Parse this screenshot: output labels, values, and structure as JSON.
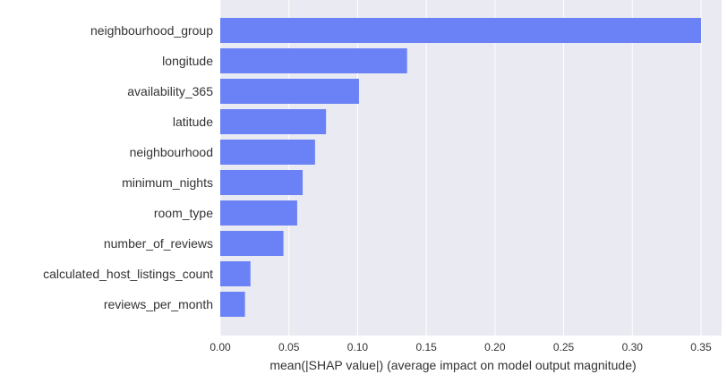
{
  "chart_data": {
    "type": "bar",
    "orientation": "horizontal",
    "categories": [
      "neighbourhood_group",
      "longitude",
      "availability_365",
      "latitude",
      "neighbourhood",
      "minimum_nights",
      "room_type",
      "number_of_reviews",
      "calculated_host_listings_count",
      "reviews_per_month"
    ],
    "values": [
      0.35,
      0.136,
      0.101,
      0.077,
      0.069,
      0.06,
      0.056,
      0.046,
      0.022,
      0.018
    ],
    "xlabel": "mean(|SHAP value|) (average impact on model output magnitude)",
    "ylabel": "",
    "xlim": [
      0,
      0.365
    ],
    "xticks": [
      0.0,
      0.05,
      0.1,
      0.15,
      0.2,
      0.25,
      0.3,
      0.35
    ],
    "xtick_labels": [
      "0.00",
      "0.05",
      "0.10",
      "0.15",
      "0.20",
      "0.25",
      "0.30",
      "0.35"
    ],
    "grid": true,
    "colors": {
      "bar": "#6a82f5",
      "plot_background": "#eaeaf2",
      "grid": "#ffffff",
      "text": "#333333"
    }
  }
}
